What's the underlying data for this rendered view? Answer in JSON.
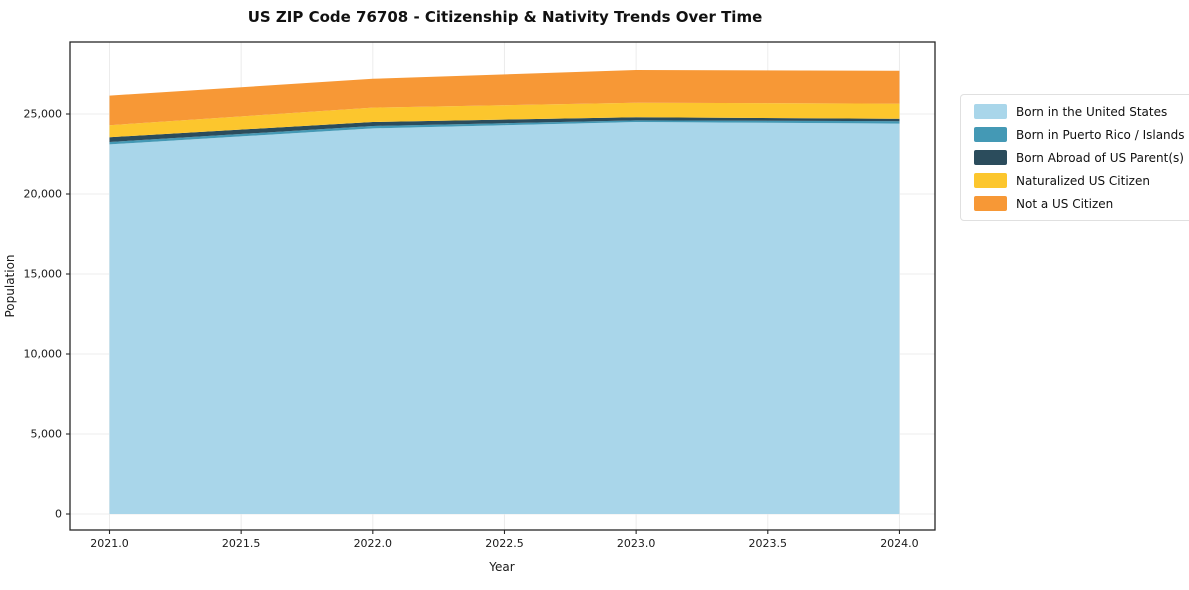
{
  "chart_data": {
    "type": "area",
    "stacked": true,
    "title": "US ZIP Code 76708 - Citizenship & Nativity Trends Over Time",
    "xlabel": "Year",
    "ylabel": "Population",
    "x": [
      2021,
      2022,
      2023,
      2024
    ],
    "series": [
      {
        "name": "Born in the United States",
        "color": "#a9d6ea",
        "values": [
          23100,
          24100,
          24500,
          24400
        ]
      },
      {
        "name": "Born in Puerto Rico / Islands",
        "color": "#4499b5",
        "values": [
          150,
          150,
          100,
          150
        ]
      },
      {
        "name": "Born Abroad of US Parent(s)",
        "color": "#2b4c5c",
        "values": [
          300,
          250,
          200,
          150
        ]
      },
      {
        "name": "Naturalized US Citizen",
        "color": "#fcc62d",
        "values": [
          750,
          900,
          900,
          950
        ]
      },
      {
        "name": "Not a US Citizen",
        "color": "#f79836",
        "values": [
          1850,
          1800,
          2050,
          2050
        ]
      }
    ],
    "xticks": {
      "values": [
        2021.0,
        2021.5,
        2022.0,
        2022.5,
        2023.0,
        2023.5,
        2024.0
      ],
      "labels": [
        "2021.0",
        "2021.5",
        "2022.0",
        "2022.5",
        "2023.0",
        "2023.5",
        "2024.0"
      ]
    },
    "yticks": {
      "values": [
        0,
        5000,
        10000,
        15000,
        20000,
        25000
      ],
      "labels": [
        "0",
        "5,000",
        "10,000",
        "15,000",
        "20,000",
        "25,000"
      ]
    },
    "xlim": [
      2020.85,
      2024.135
    ],
    "ylim": [
      -1000,
      29500
    ],
    "grid": true,
    "legend_position": "right"
  }
}
